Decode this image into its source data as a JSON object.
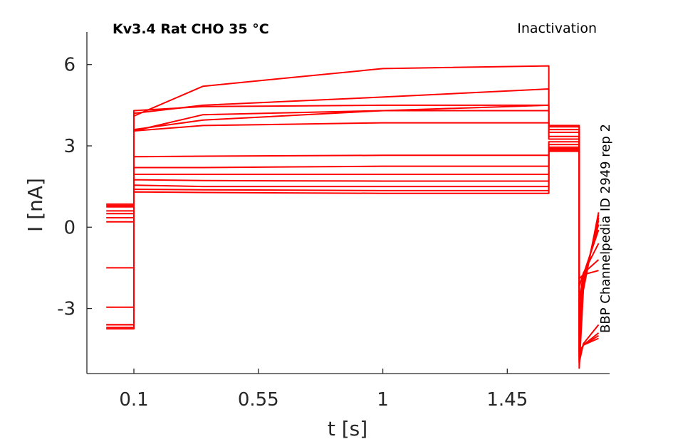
{
  "chart_data": {
    "type": "line",
    "title": "Kv3.4  Rat  CHO  35 °C",
    "annotation": "Inactivation",
    "side_label": "BBP Channelpedia ID 2949 rep 2",
    "xlabel": "t [s]",
    "ylabel": "I [nA]",
    "xlim": [
      -0.07,
      1.82
    ],
    "ylim": [
      -5.4,
      7.2
    ],
    "xticks": [
      0.1,
      0.55,
      1,
      1.45
    ],
    "xtick_labels": [
      "0.1",
      "0.55",
      "1",
      "1.45"
    ],
    "yticks": [
      -3,
      0,
      3,
      6
    ],
    "ytick_labels": [
      "-3",
      "0",
      "3",
      "6"
    ],
    "grid": false,
    "legend": "none",
    "color": "#ff0000",
    "segments": {
      "prepulse": [
        0.0,
        0.1
      ],
      "step": [
        0.1,
        1.6
      ],
      "tail": [
        1.6,
        1.71
      ],
      "recovery": [
        1.71,
        1.78
      ]
    },
    "series": [
      {
        "prepulse": 0.85,
        "peak": 4.1,
        "early": 5.2,
        "late": 5.85,
        "plateau": 5.95,
        "tail": 3.75,
        "recovery_start": -5.2,
        "recovery_end": 0.55
      },
      {
        "prepulse": 0.8,
        "peak": 4.2,
        "early": 4.5,
        "late": 4.8,
        "plateau": 5.1,
        "tail": 3.7,
        "recovery_start": -4.9,
        "recovery_end": 0.45
      },
      {
        "prepulse": 0.75,
        "peak": 4.3,
        "early": 4.45,
        "late": 4.5,
        "plateau": 4.5,
        "tail": 3.6,
        "recovery_start": -4.6,
        "recovery_end": 0.35
      },
      {
        "prepulse": 0.6,
        "peak": 3.6,
        "early": 3.95,
        "late": 4.3,
        "plateau": 4.5,
        "tail": 3.5,
        "recovery_start": -4.3,
        "recovery_end": 0.25
      },
      {
        "prepulse": 0.5,
        "peak": 3.55,
        "early": 4.15,
        "late": 4.3,
        "plateau": 4.3,
        "tail": 3.35,
        "recovery_start": -3.9,
        "recovery_end": 0.1
      },
      {
        "prepulse": 0.35,
        "peak": 3.55,
        "early": 3.75,
        "late": 3.85,
        "plateau": 3.85,
        "tail": 3.25,
        "recovery_start": -3.4,
        "recovery_end": -0.1
      },
      {
        "prepulse": 0.2,
        "peak": 2.6,
        "early": 2.62,
        "late": 2.65,
        "plateau": 2.65,
        "tail": 3.15,
        "recovery_start": -2.8,
        "recovery_end": -0.6
      },
      {
        "prepulse": -1.5,
        "peak": 2.2,
        "early": 2.2,
        "late": 2.25,
        "plateau": 2.25,
        "tail": 3.05,
        "recovery_start": -2.2,
        "recovery_end": -1.2
      },
      {
        "prepulse": -2.95,
        "peak": 1.95,
        "early": 1.95,
        "late": 1.95,
        "plateau": 1.95,
        "tail": 2.95,
        "recovery_start": -1.9,
        "recovery_end": -1.6
      },
      {
        "prepulse": -3.7,
        "peak": 1.75,
        "early": 1.72,
        "late": 1.7,
        "plateau": 1.7,
        "tail": 2.9,
        "recovery_start": -5.0,
        "recovery_end": -3.6
      },
      {
        "prepulse": -3.75,
        "peak": 1.55,
        "early": 1.5,
        "late": 1.5,
        "plateau": 1.5,
        "tail": 2.85,
        "recovery_start": -4.8,
        "recovery_end": -3.9
      },
      {
        "prepulse": -3.6,
        "peak": 1.4,
        "early": 1.38,
        "late": 1.35,
        "plateau": 1.35,
        "tail": 2.85,
        "recovery_start": -4.7,
        "recovery_end": -4.0
      },
      {
        "prepulse": -3.6,
        "peak": 1.3,
        "early": 1.28,
        "late": 1.25,
        "plateau": 1.25,
        "tail": 2.8,
        "recovery_start": -4.6,
        "recovery_end": -4.1
      }
    ]
  }
}
